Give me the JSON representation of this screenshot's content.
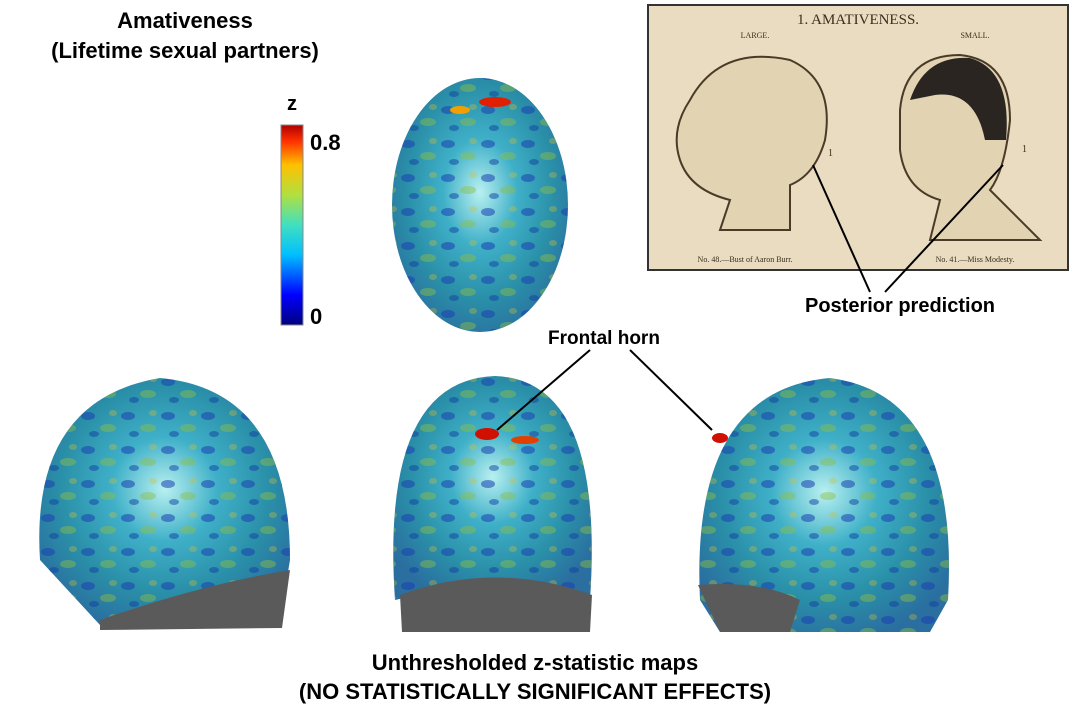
{
  "title": {
    "line1": "Amativeness",
    "line2": "(Lifetime sexual partners)"
  },
  "colorbar": {
    "label": "z",
    "max": 0.8,
    "min": 0
  },
  "annotations": {
    "frontal_horn": "Frontal horn",
    "posterior_prediction": "Posterior prediction"
  },
  "inset": {
    "title": "1. AMATIVENESS.",
    "left_label": "LARGE.",
    "right_label": "SMALL.",
    "left_caption": "No. 48.—Bust of Aaron Burr.",
    "right_caption": "No. 41.—Miss Modesty.",
    "left_marker": "1",
    "right_marker": "1"
  },
  "caption": {
    "line1": "Unthresholded z-statistic maps",
    "line2": "(NO STATISTICALLY SIGNIFICANT EFFECTS)"
  }
}
